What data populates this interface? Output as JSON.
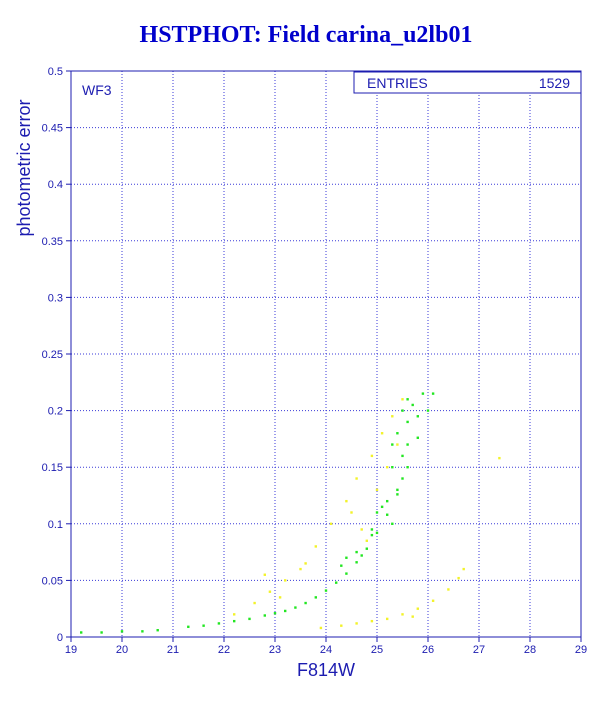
{
  "chart_data": {
    "type": "scatter",
    "title": "HSTPHOT: Field carina_u2lb01",
    "xlabel": "F814W",
    "ylabel": "photometric error",
    "xlim": [
      19,
      29
    ],
    "ylim": [
      0,
      0.5
    ],
    "x_ticks": [
      "19",
      "20",
      "21",
      "22",
      "23",
      "24",
      "25",
      "26",
      "27",
      "28",
      "29"
    ],
    "y_ticks": [
      "0",
      "0.05",
      "0.1",
      "0.15",
      "0.2",
      "0.25",
      "0.3",
      "0.35",
      "0.4",
      "0.45",
      "0.5"
    ],
    "grid": true,
    "panel_label": "WF3",
    "stats_box": {
      "label": "ENTRIES",
      "value": "1529"
    },
    "colors": {
      "frame": "#1c1cb0",
      "grid": "#3a3ad8",
      "series_main": "#22e622",
      "series_secondary": "#f2f22a"
    },
    "series": [
      {
        "color": "#22e622",
        "points": [
          [
            19.2,
            0.004
          ],
          [
            19.6,
            0.004
          ],
          [
            20.0,
            0.005
          ],
          [
            20.4,
            0.005
          ],
          [
            20.7,
            0.006
          ],
          [
            21.3,
            0.009
          ],
          [
            21.6,
            0.01
          ],
          [
            21.9,
            0.012
          ],
          [
            22.2,
            0.014
          ],
          [
            22.5,
            0.016
          ],
          [
            22.8,
            0.019
          ],
          [
            23.0,
            0.021
          ],
          [
            23.2,
            0.023
          ],
          [
            23.4,
            0.026
          ],
          [
            23.6,
            0.03
          ],
          [
            23.8,
            0.035
          ],
          [
            24.0,
            0.041
          ],
          [
            24.2,
            0.048
          ],
          [
            24.4,
            0.056
          ],
          [
            24.6,
            0.066
          ],
          [
            24.8,
            0.078
          ],
          [
            25.0,
            0.092
          ],
          [
            25.2,
            0.108
          ],
          [
            25.4,
            0.126
          ],
          [
            25.6,
            0.15
          ],
          [
            25.8,
            0.176
          ],
          [
            26.0,
            0.2
          ],
          [
            26.1,
            0.215
          ],
          [
            25.3,
            0.15
          ],
          [
            25.4,
            0.18
          ],
          [
            25.5,
            0.2
          ],
          [
            25.6,
            0.21
          ],
          [
            25.3,
            0.17
          ],
          [
            25.5,
            0.16
          ],
          [
            25.2,
            0.12
          ],
          [
            25.4,
            0.13
          ],
          [
            25.0,
            0.11
          ],
          [
            24.9,
            0.09
          ],
          [
            24.6,
            0.075
          ],
          [
            24.4,
            0.07
          ],
          [
            24.3,
            0.063
          ],
          [
            25.7,
            0.205
          ],
          [
            25.8,
            0.195
          ],
          [
            25.9,
            0.215
          ],
          [
            25.6,
            0.19
          ],
          [
            25.1,
            0.115
          ],
          [
            24.7,
            0.072
          ],
          [
            25.5,
            0.14
          ],
          [
            25.3,
            0.1
          ],
          [
            24.9,
            0.095
          ],
          [
            25.6,
            0.17
          ]
        ]
      },
      {
        "color": "#f2f22a",
        "points": [
          [
            23.9,
            0.008
          ],
          [
            24.3,
            0.01
          ],
          [
            24.6,
            0.012
          ],
          [
            24.9,
            0.014
          ],
          [
            25.2,
            0.016
          ],
          [
            25.5,
            0.02
          ],
          [
            25.8,
            0.025
          ],
          [
            26.1,
            0.032
          ],
          [
            26.4,
            0.042
          ],
          [
            26.6,
            0.052
          ],
          [
            26.7,
            0.06
          ],
          [
            22.2,
            0.02
          ],
          [
            22.6,
            0.03
          ],
          [
            22.9,
            0.04
          ],
          [
            23.2,
            0.05
          ],
          [
            23.5,
            0.06
          ],
          [
            23.8,
            0.08
          ],
          [
            24.1,
            0.1
          ],
          [
            24.4,
            0.12
          ],
          [
            24.6,
            0.14
          ],
          [
            24.9,
            0.16
          ],
          [
            25.1,
            0.18
          ],
          [
            25.3,
            0.195
          ],
          [
            25.5,
            0.21
          ],
          [
            24.7,
            0.095
          ],
          [
            25.0,
            0.13
          ],
          [
            24.5,
            0.11
          ],
          [
            23.6,
            0.065
          ],
          [
            22.8,
            0.055
          ],
          [
            27.4,
            0.158
          ],
          [
            25.4,
            0.17
          ],
          [
            25.2,
            0.15
          ],
          [
            24.8,
            0.085
          ],
          [
            23.1,
            0.035
          ],
          [
            25.7,
            0.018
          ]
        ]
      }
    ]
  }
}
